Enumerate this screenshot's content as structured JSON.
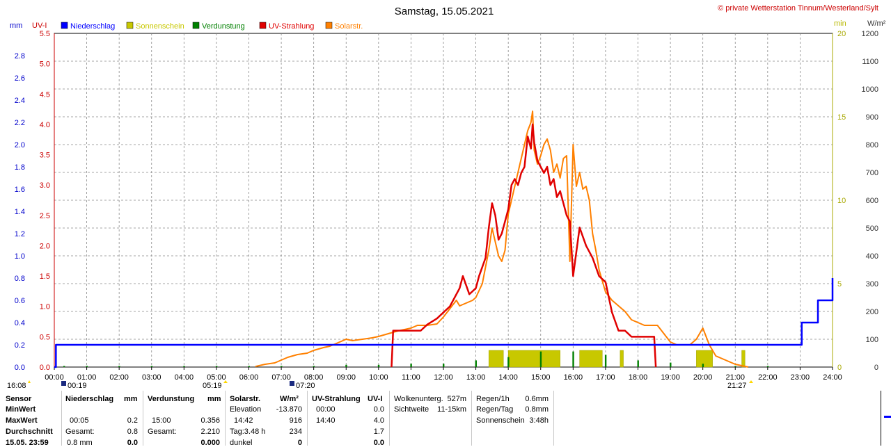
{
  "header": {
    "title": "Samstag, 15.05.2021",
    "copyright": "© private Wetterstation Tinnum/Westerland/Sylt"
  },
  "axis_units": {
    "mm": "mm",
    "uv": "UV-I",
    "min": "min",
    "wm2": "W/m²"
  },
  "legend": [
    {
      "label": "Niederschlag",
      "color": "#0000ff"
    },
    {
      "label": "Sonnenschein",
      "color": "#c8c800"
    },
    {
      "label": "Verdunstung",
      "color": "#008000"
    },
    {
      "label": "UV-Strahlung",
      "color": "#e00000"
    },
    {
      "label": "Solarstr.",
      "color": "#ff8000"
    }
  ],
  "astro_labels": {
    "moonrise": "16:08",
    "moonrise_top": "00:19",
    "sunrise": "05:19",
    "moonset": "07:20",
    "sunset": "21:27"
  },
  "chart_data": {
    "type": "line",
    "title": "Samstag, 15.05.2021",
    "x_ticks": [
      "00:00",
      "01:00",
      "02:00",
      "03:00",
      "04:00",
      "05:00",
      "06:00",
      "07:00",
      "08:00",
      "09:00",
      "10:00",
      "11:00",
      "12:00",
      "13:00",
      "14:00",
      "15:00",
      "16:00",
      "17:00",
      "18:00",
      "19:00",
      "20:00",
      "21:00",
      "22:00",
      "23:00",
      "24:00"
    ],
    "axes": {
      "mm": {
        "range": [
          0,
          3.0
        ],
        "ticks": [
          "0.0",
          "0.2",
          "0.4",
          "0.6",
          "0.8",
          "1.0",
          "1.2",
          "1.4",
          "1.6",
          "1.8",
          "2.0",
          "2.2",
          "2.4",
          "2.6",
          "2.8"
        ]
      },
      "uv": {
        "range": [
          0,
          5.5
        ],
        "ticks": [
          "0.0",
          "0.5",
          "1.0",
          "1.5",
          "2.0",
          "2.5",
          "3.0",
          "3.5",
          "4.0",
          "4.5",
          "5.0",
          "5.5"
        ]
      },
      "min": {
        "range": [
          0,
          20
        ],
        "ticks": [
          "0",
          "5",
          "10",
          "15",
          "20"
        ]
      },
      "wm2": {
        "range": [
          0,
          1200
        ],
        "ticks": [
          "0",
          "100",
          "200",
          "300",
          "400",
          "500",
          "600",
          "700",
          "800",
          "900",
          "1000",
          "1100",
          "1200"
        ]
      }
    },
    "grid": true,
    "series": [
      {
        "name": "Niederschlag",
        "axis": "mm",
        "step": true,
        "color": "#0000ff",
        "x": [
          0.0,
          0.05,
          0.08,
          23.0,
          23.05,
          23.5,
          23.55,
          24.0
        ],
        "y": [
          0.0,
          0.2,
          0.2,
          0.2,
          0.4,
          0.4,
          0.6,
          0.8
        ]
      },
      {
        "name": "Solarstr.",
        "axis": "wm2",
        "color": "#ff8000",
        "x": [
          6.2,
          6.5,
          6.8,
          7.0,
          7.2,
          7.5,
          7.8,
          8.0,
          8.3,
          8.5,
          8.7,
          9.0,
          9.2,
          9.5,
          9.8,
          10.0,
          10.3,
          10.6,
          11.0,
          11.2,
          11.5,
          11.8,
          12.0,
          12.2,
          12.4,
          12.5,
          12.7,
          12.9,
          13.0,
          13.2,
          13.4,
          13.5,
          13.6,
          13.7,
          13.8,
          13.9,
          14.0,
          14.1,
          14.2,
          14.3,
          14.4,
          14.5,
          14.6,
          14.7,
          14.75,
          14.8,
          14.9,
          15.0,
          15.1,
          15.2,
          15.3,
          15.4,
          15.5,
          15.6,
          15.7,
          15.8,
          15.9,
          16.0,
          16.1,
          16.2,
          16.3,
          16.4,
          16.5,
          16.6,
          16.7,
          16.8,
          17.0,
          17.2,
          17.4,
          17.6,
          17.8,
          18.0,
          18.2,
          18.4,
          18.6,
          18.8,
          19.0,
          19.2,
          19.4,
          19.6,
          19.8,
          20.0,
          20.2,
          20.4,
          20.6,
          20.8,
          21.0,
          21.2,
          21.4
        ],
        "y": [
          2,
          10,
          15,
          25,
          35,
          45,
          50,
          60,
          70,
          75,
          85,
          100,
          95,
          100,
          105,
          110,
          120,
          130,
          140,
          150,
          150,
          155,
          180,
          210,
          240,
          220,
          230,
          240,
          250,
          300,
          420,
          500,
          450,
          400,
          380,
          420,
          550,
          600,
          650,
          700,
          750,
          800,
          850,
          880,
          920,
          780,
          730,
          760,
          800,
          820,
          780,
          700,
          730,
          680,
          750,
          760,
          380,
          800,
          650,
          700,
          640,
          650,
          600,
          480,
          420,
          350,
          270,
          240,
          220,
          200,
          170,
          160,
          150,
          150,
          150,
          120,
          90,
          80,
          80,
          80,
          100,
          140,
          80,
          40,
          30,
          20,
          10,
          5,
          0
        ]
      },
      {
        "name": "UV-Strahlung",
        "axis": "uv",
        "color": "#e00000",
        "x": [
          10.4,
          10.45,
          10.6,
          11.0,
          11.3,
          11.5,
          11.8,
          12.0,
          12.2,
          12.5,
          12.6,
          12.8,
          13.0,
          13.1,
          13.3,
          13.4,
          13.5,
          13.6,
          13.7,
          13.8,
          13.9,
          14.0,
          14.1,
          14.2,
          14.3,
          14.4,
          14.5,
          14.6,
          14.7,
          14.75,
          14.8,
          14.9,
          15.0,
          15.1,
          15.2,
          15.3,
          15.4,
          15.5,
          15.6,
          15.7,
          15.8,
          15.9,
          16.0,
          16.2,
          16.4,
          16.6,
          16.8,
          17.0,
          17.2,
          17.4,
          17.6,
          17.8,
          18.0,
          18.2,
          18.4,
          18.5,
          18.55
        ],
        "y": [
          0.0,
          0.6,
          0.6,
          0.6,
          0.6,
          0.7,
          0.8,
          0.9,
          1.0,
          1.3,
          1.5,
          1.2,
          1.3,
          1.5,
          1.8,
          2.3,
          2.7,
          2.5,
          2.1,
          2.2,
          2.4,
          2.6,
          3.0,
          3.1,
          3.0,
          3.2,
          3.3,
          3.8,
          3.6,
          4.0,
          3.7,
          3.4,
          3.3,
          3.2,
          3.3,
          3.0,
          3.1,
          2.8,
          2.9,
          2.7,
          2.5,
          2.4,
          1.5,
          2.3,
          2.0,
          1.8,
          1.5,
          1.4,
          0.9,
          0.6,
          0.6,
          0.5,
          0.5,
          0.5,
          0.5,
          0.5,
          0.0
        ]
      },
      {
        "name": "Verdunstung",
        "axis": "mm",
        "bars": true,
        "color": "#008000",
        "x": [
          0.3,
          1.0,
          2.0,
          3.0,
          4.0,
          5.0,
          6.0,
          7.0,
          8.0,
          9.0,
          10.0,
          11.0,
          12.0,
          13.0,
          14.0,
          15.0,
          16.0,
          17.0,
          18.0,
          19.0,
          20.0,
          21.0,
          22.0
        ],
        "y": [
          0.01,
          0.01,
          0.01,
          0.01,
          0.01,
          0.01,
          0.01,
          0.01,
          0.01,
          0.02,
          0.02,
          0.03,
          0.03,
          0.06,
          0.09,
          0.14,
          0.14,
          0.11,
          0.06,
          0.04,
          0.03,
          0.01,
          0.01
        ]
      },
      {
        "name": "Sonnenschein",
        "axis": "min",
        "blocks": [
          [
            13.4,
            13.85
          ],
          [
            14.0,
            15.6
          ],
          [
            16.2,
            16.9
          ],
          [
            17.45,
            17.55
          ],
          [
            19.8,
            20.3
          ],
          [
            21.2,
            21.3
          ]
        ],
        "value": 1
      }
    ]
  },
  "stats": {
    "col_sensor": {
      "h": "Sensor",
      "r1": "MinWert",
      "r2": "MaxWert",
      "r3": "Durchschnitt",
      "r4": "15.05. 23:59"
    },
    "col_rain": {
      "h": "Niederschlag",
      "unit": "mm",
      "r2a": "00:05",
      "r2b": "0.2",
      "r3a": "Gesamt:",
      "r3b": "0.8",
      "r4a": "0.8 mm",
      "r4b": "0.0"
    },
    "col_evap": {
      "h": "Verdunstung",
      "unit": "mm",
      "r2a": "15:00",
      "r2b": "0.356",
      "r3a": "Gesamt:",
      "r3b": "2.210",
      "r4b": "0.000"
    },
    "col_solar": {
      "h": "Solarstr.",
      "unit": "W/m²",
      "r1a": "Elevation",
      "r1b": "-13.870",
      "r2a": "14:42",
      "r2b": "916",
      "r3a": "Tag:3.48 h",
      "r3b": "234",
      "r4a": "dunkel",
      "r4b": "0"
    },
    "col_uv": {
      "h": "UV-Strahlung",
      "unit": "UV-I",
      "r1a": "00:00",
      "r1b": "0.0",
      "r2a": "14:40",
      "r2b": "4.0",
      "r3b": "1.7",
      "r4b": "0.0"
    },
    "col_cloud": {
      "l1a": "Wolkenunterg.",
      "l1b": "527m",
      "l2a": "Sichtweite",
      "l2b": "11-15km"
    },
    "col_rain2": {
      "l1a": "Regen/1h",
      "l1b": "0.6mm",
      "l2a": "Regen/Tag",
      "l2b": "0.8mm",
      "l3a": "Sonnenschein",
      "l3b": "3:48h"
    }
  }
}
